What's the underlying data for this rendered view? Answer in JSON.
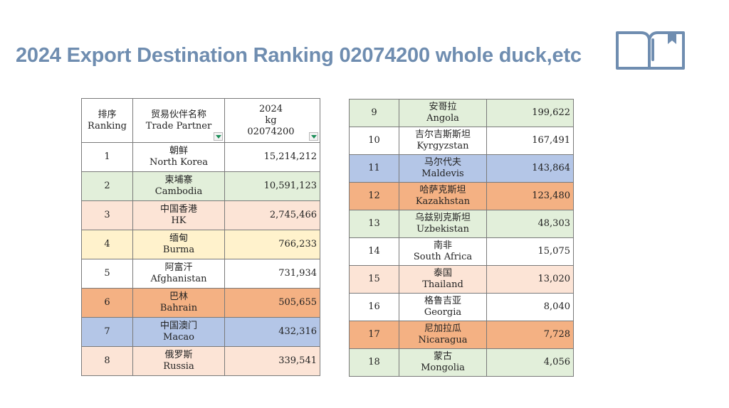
{
  "title": "2024 Export Destination Ranking 02074200 whole duck,etc",
  "header": {
    "rank_cn": "排序",
    "rank_en": "Ranking",
    "partner_cn": "贸易伙伴名称",
    "partner_en": "Trade Partner",
    "year": "2024",
    "unit": "kg",
    "code": "02074200"
  },
  "rows_left": [
    {
      "rank": "1",
      "name_cn": "朝鲜",
      "name_en": "North Korea",
      "value": "15,214,212",
      "color": "#ffffff"
    },
    {
      "rank": "2",
      "name_cn": "柬埔寨",
      "name_en": "Cambodia",
      "value": "10,591,123",
      "color": "#e2efda"
    },
    {
      "rank": "3",
      "name_cn": "中国香港",
      "name_en": "HK",
      "value": "2,745,466",
      "color": "#fce4d6"
    },
    {
      "rank": "4",
      "name_cn": "缅甸",
      "name_en": "Burma",
      "value": "766,233",
      "color": "#fff2cc"
    },
    {
      "rank": "5",
      "name_cn": "阿富汗",
      "name_en": "Afghanistan",
      "value": "731,934",
      "color": "#ffffff"
    },
    {
      "rank": "6",
      "name_cn": "巴林",
      "name_en": "Bahrain",
      "value": "505,655",
      "color": "#f4b183"
    },
    {
      "rank": "7",
      "name_cn": "中国澳门",
      "name_en": "Macao",
      "value": "432,316",
      "color": "#b4c6e7"
    },
    {
      "rank": "8",
      "name_cn": "俄罗斯",
      "name_en": "Russia",
      "value": "339,541",
      "color": "#fce4d6"
    }
  ],
  "rows_right": [
    {
      "rank": "9",
      "name_cn": "安哥拉",
      "name_en": "Angola",
      "value": "199,622",
      "color": "#e2efda"
    },
    {
      "rank": "10",
      "name_cn": "吉尔吉斯斯坦",
      "name_en": "Kyrgyzstan",
      "value": "167,491",
      "color": "#ffffff"
    },
    {
      "rank": "11",
      "name_cn": "马尔代夫",
      "name_en": "Maldevis",
      "value": "143,864",
      "color": "#b4c6e7"
    },
    {
      "rank": "12",
      "name_cn": "哈萨克斯坦",
      "name_en": "Kazakhstan",
      "value": "123,480",
      "color": "#f4b183"
    },
    {
      "rank": "13",
      "name_cn": "乌兹别克斯坦",
      "name_en": "Uzbekistan",
      "value": "48,303",
      "color": "#e2efda"
    },
    {
      "rank": "14",
      "name_cn": "南非",
      "name_en": "South Africa",
      "value": "15,075",
      "color": "#ffffff"
    },
    {
      "rank": "15",
      "name_cn": "泰国",
      "name_en": "Thailand",
      "value": "13,020",
      "color": "#fce4d6"
    },
    {
      "rank": "16",
      "name_cn": "格鲁吉亚",
      "name_en": "Georgia",
      "value": "8,040",
      "color": "#ffffff"
    },
    {
      "rank": "17",
      "name_cn": "尼加拉瓜",
      "name_en": "Nicaragua",
      "value": "7,728",
      "color": "#f4b183"
    },
    {
      "rank": "18",
      "name_cn": "蒙古",
      "name_en": "Mongolia",
      "value": "4,056",
      "color": "#e2efda"
    }
  ],
  "icons": {
    "book": "open-book-icon"
  },
  "colors": {
    "title": "#6f8db0",
    "icon": "#6f8db0",
    "filter_arrow": "#1e8f5a"
  }
}
